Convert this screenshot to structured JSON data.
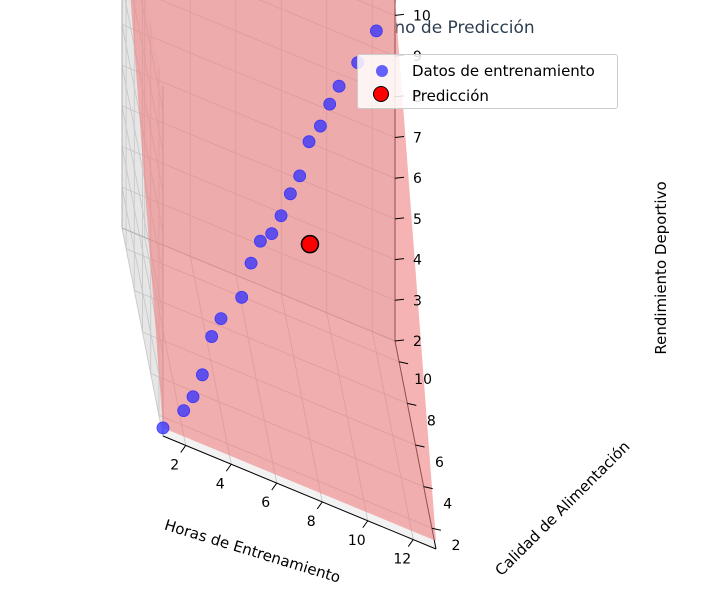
{
  "chart_data": {
    "type": "scatter",
    "title": "📈 Regresión Lineal - Plano de Predicción",
    "xlabel": "Horas de Entrenamiento",
    "ylabel": "Calidad de Alimentación",
    "zlabel": "Rendimiento Deportivo",
    "xlim": [
      1,
      13
    ],
    "ylim": [
      1,
      11
    ],
    "zlim": [
      2,
      10.6
    ],
    "x_ticks": [
      2,
      4,
      6,
      8,
      10,
      12
    ],
    "y_ticks": [
      2,
      4,
      6,
      8,
      10
    ],
    "z_ticks": [
      2,
      3,
      4,
      5,
      6,
      7,
      8,
      9,
      10
    ],
    "grid": true,
    "legend_position": "top-right",
    "plane": {
      "color": "#f08080",
      "z_at_min": 2.2,
      "z_at_max": 10.4
    },
    "series": [
      {
        "name": "Datos de entrenamiento",
        "color": "#2f2fff",
        "points": [
          {
            "x": 1,
            "y": 1,
            "z": 2.2
          },
          {
            "x": 2,
            "y": 1.5,
            "z": 2.6
          },
          {
            "x": 2.5,
            "y": 2,
            "z": 2.8
          },
          {
            "x": 3,
            "y": 2.5,
            "z": 3.2
          },
          {
            "x": 3.5,
            "y": 3,
            "z": 4
          },
          {
            "x": 4,
            "y": 3.5,
            "z": 4.3
          },
          {
            "x": 5,
            "y": 4,
            "z": 4.8
          },
          {
            "x": 5.5,
            "y": 4.5,
            "z": 5.5
          },
          {
            "x": 6,
            "y": 5,
            "z": 5.9
          },
          {
            "x": 6.5,
            "y": 5,
            "z": 6.2
          },
          {
            "x": 7,
            "y": 5.5,
            "z": 6.5
          },
          {
            "x": 7.5,
            "y": 6,
            "z": 6.9
          },
          {
            "x": 8,
            "y": 6.5,
            "z": 7.2
          },
          {
            "x": 8.5,
            "y": 7,
            "z": 7.9
          },
          {
            "x": 9,
            "y": 7,
            "z": 8.4
          },
          {
            "x": 9.5,
            "y": 7.5,
            "z": 8.8
          },
          {
            "x": 10,
            "y": 8,
            "z": 9.1
          },
          {
            "x": 11,
            "y": 9,
            "z": 9.4
          },
          {
            "x": 12,
            "y": 10,
            "z": 9.9
          }
        ]
      },
      {
        "name": "Predicción",
        "color": "#ff0000",
        "edge_color": "#000000",
        "points": [
          {
            "x": 8,
            "y": 4,
            "z": 6.8
          }
        ]
      }
    ]
  }
}
